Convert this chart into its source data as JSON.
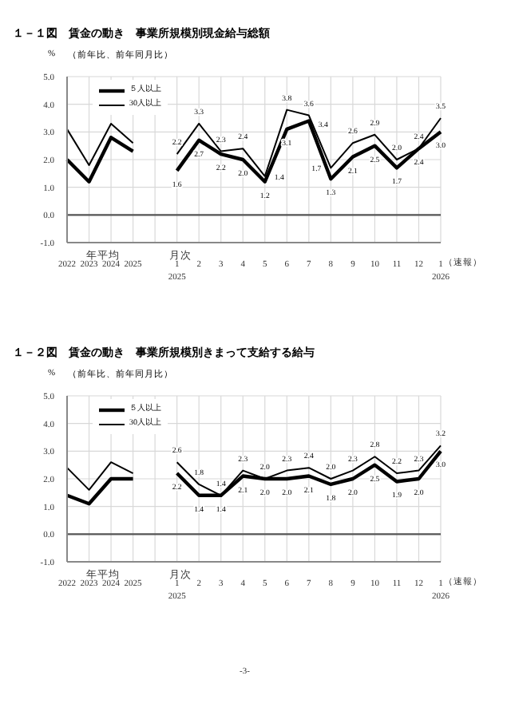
{
  "chart_data": [
    {
      "type": "line",
      "title": "１－１図　賃金の動き　事業所規模別現金給与総額",
      "subtitle": "（前年比、前年同月比）",
      "ylabel": "%",
      "categories": [
        "2022",
        "2023",
        "2024",
        "2025",
        null,
        "1\n2025",
        "2",
        "3",
        "4",
        "5",
        "6",
        "7",
        "8",
        "9",
        "10",
        "11",
        "12",
        "1\n2026"
      ],
      "series": [
        {
          "name": "５人以上",
          "color": "#000000",
          "values": [
            2.0,
            1.2,
            2.8,
            2.3,
            null,
            1.6,
            2.7,
            2.2,
            2.0,
            1.2,
            3.1,
            3.4,
            1.3,
            2.1,
            2.5,
            1.7,
            2.4,
            3.0
          ],
          "value_labels": [
            null,
            null,
            null,
            null,
            null,
            "1.6",
            "2.7",
            "2.2",
            "2.0",
            "1.2",
            "3.1",
            "3.4",
            "1.3",
            "2.1",
            "2.5",
            "1.7",
            "2.4",
            "3.0"
          ]
        },
        {
          "name": "30人以上",
          "color": "#000000",
          "values": [
            3.1,
            1.8,
            3.3,
            2.6,
            null,
            2.2,
            3.3,
            2.3,
            2.4,
            1.4,
            3.8,
            3.6,
            1.7,
            2.6,
            2.9,
            2.0,
            2.4,
            3.5
          ],
          "value_labels": [
            null,
            null,
            null,
            null,
            null,
            "2.2",
            "3.3",
            "2.3",
            "2.4",
            "1.4",
            "3.8",
            "3.6",
            "1.7",
            "2.6",
            "2.9",
            "2.0",
            "2.4",
            "3.5"
          ]
        }
      ],
      "ylim": [
        -1,
        5
      ],
      "yticks": [
        {
          "value": -1,
          "label": "-1.0"
        },
        {
          "value": 0,
          "label": "0.0"
        },
        {
          "value": 1,
          "label": "1.0"
        },
        {
          "value": 2,
          "label": "2.0"
        },
        {
          "value": 3,
          "label": "3.0"
        },
        {
          "value": 4,
          "label": "4.0"
        },
        {
          "value": 5,
          "label": "5.0"
        }
      ],
      "ref_lines": [
        {
          "axis": "y",
          "value": 0,
          "color": "#555555"
        }
      ],
      "grid": true,
      "legend": "top left",
      "annotations": [
        "年平均",
        "月次",
        "（速報）"
      ]
    },
    {
      "type": "line",
      "title": "１－２図　賃金の動き　事業所規模別きまって支給する給与",
      "subtitle": "（前年比、前年同月比）",
      "ylabel": "%",
      "categories": [
        "2022",
        "2023",
        "2024",
        "2025",
        null,
        "1\n2025",
        "2",
        "3",
        "4",
        "5",
        "6",
        "7",
        "8",
        "9",
        "10",
        "11",
        "12",
        "1\n2026"
      ],
      "series": [
        {
          "name": "５人以上",
          "color": "#000000",
          "values": [
            1.4,
            1.1,
            2.0,
            2.0,
            null,
            2.2,
            1.4,
            1.4,
            2.1,
            2.0,
            2.0,
            2.1,
            1.8,
            2.0,
            2.5,
            1.9,
            2.0,
            3.0
          ],
          "value_labels": [
            null,
            null,
            null,
            null,
            null,
            "2.2",
            "1.4",
            "1.4",
            "2.1",
            "2.0",
            "2.0",
            "2.1",
            "1.8",
            "2.0",
            "2.5",
            "1.9",
            "2.0",
            "3.0"
          ]
        },
        {
          "name": "30人以上",
          "color": "#000000",
          "values": [
            2.4,
            1.6,
            2.6,
            2.2,
            null,
            2.6,
            1.8,
            1.4,
            2.3,
            2.0,
            2.3,
            2.4,
            2.0,
            2.3,
            2.8,
            2.2,
            2.3,
            3.2
          ],
          "value_labels": [
            null,
            null,
            null,
            null,
            null,
            "2.6",
            "1.8",
            "1.4",
            "2.3",
            "2.0",
            "2.3",
            "2.4",
            "2.0",
            "2.3",
            "2.8",
            "2.2",
            "2.3",
            "3.2"
          ]
        }
      ],
      "ylim": [
        -1,
        5
      ],
      "yticks": [
        {
          "value": -1,
          "label": "-1.0"
        },
        {
          "value": 0,
          "label": "0.0"
        },
        {
          "value": 1,
          "label": "1.0"
        },
        {
          "value": 2,
          "label": "2.0"
        },
        {
          "value": 3,
          "label": "3.0"
        },
        {
          "value": 4,
          "label": "4.0"
        },
        {
          "value": 5,
          "label": "5.0"
        }
      ],
      "ref_lines": [
        {
          "axis": "y",
          "value": 0,
          "color": "#555555"
        }
      ],
      "grid": true,
      "legend": "top left",
      "annotations": [
        "年平均",
        "月次",
        "（速報）",
        "-3-"
      ]
    }
  ]
}
